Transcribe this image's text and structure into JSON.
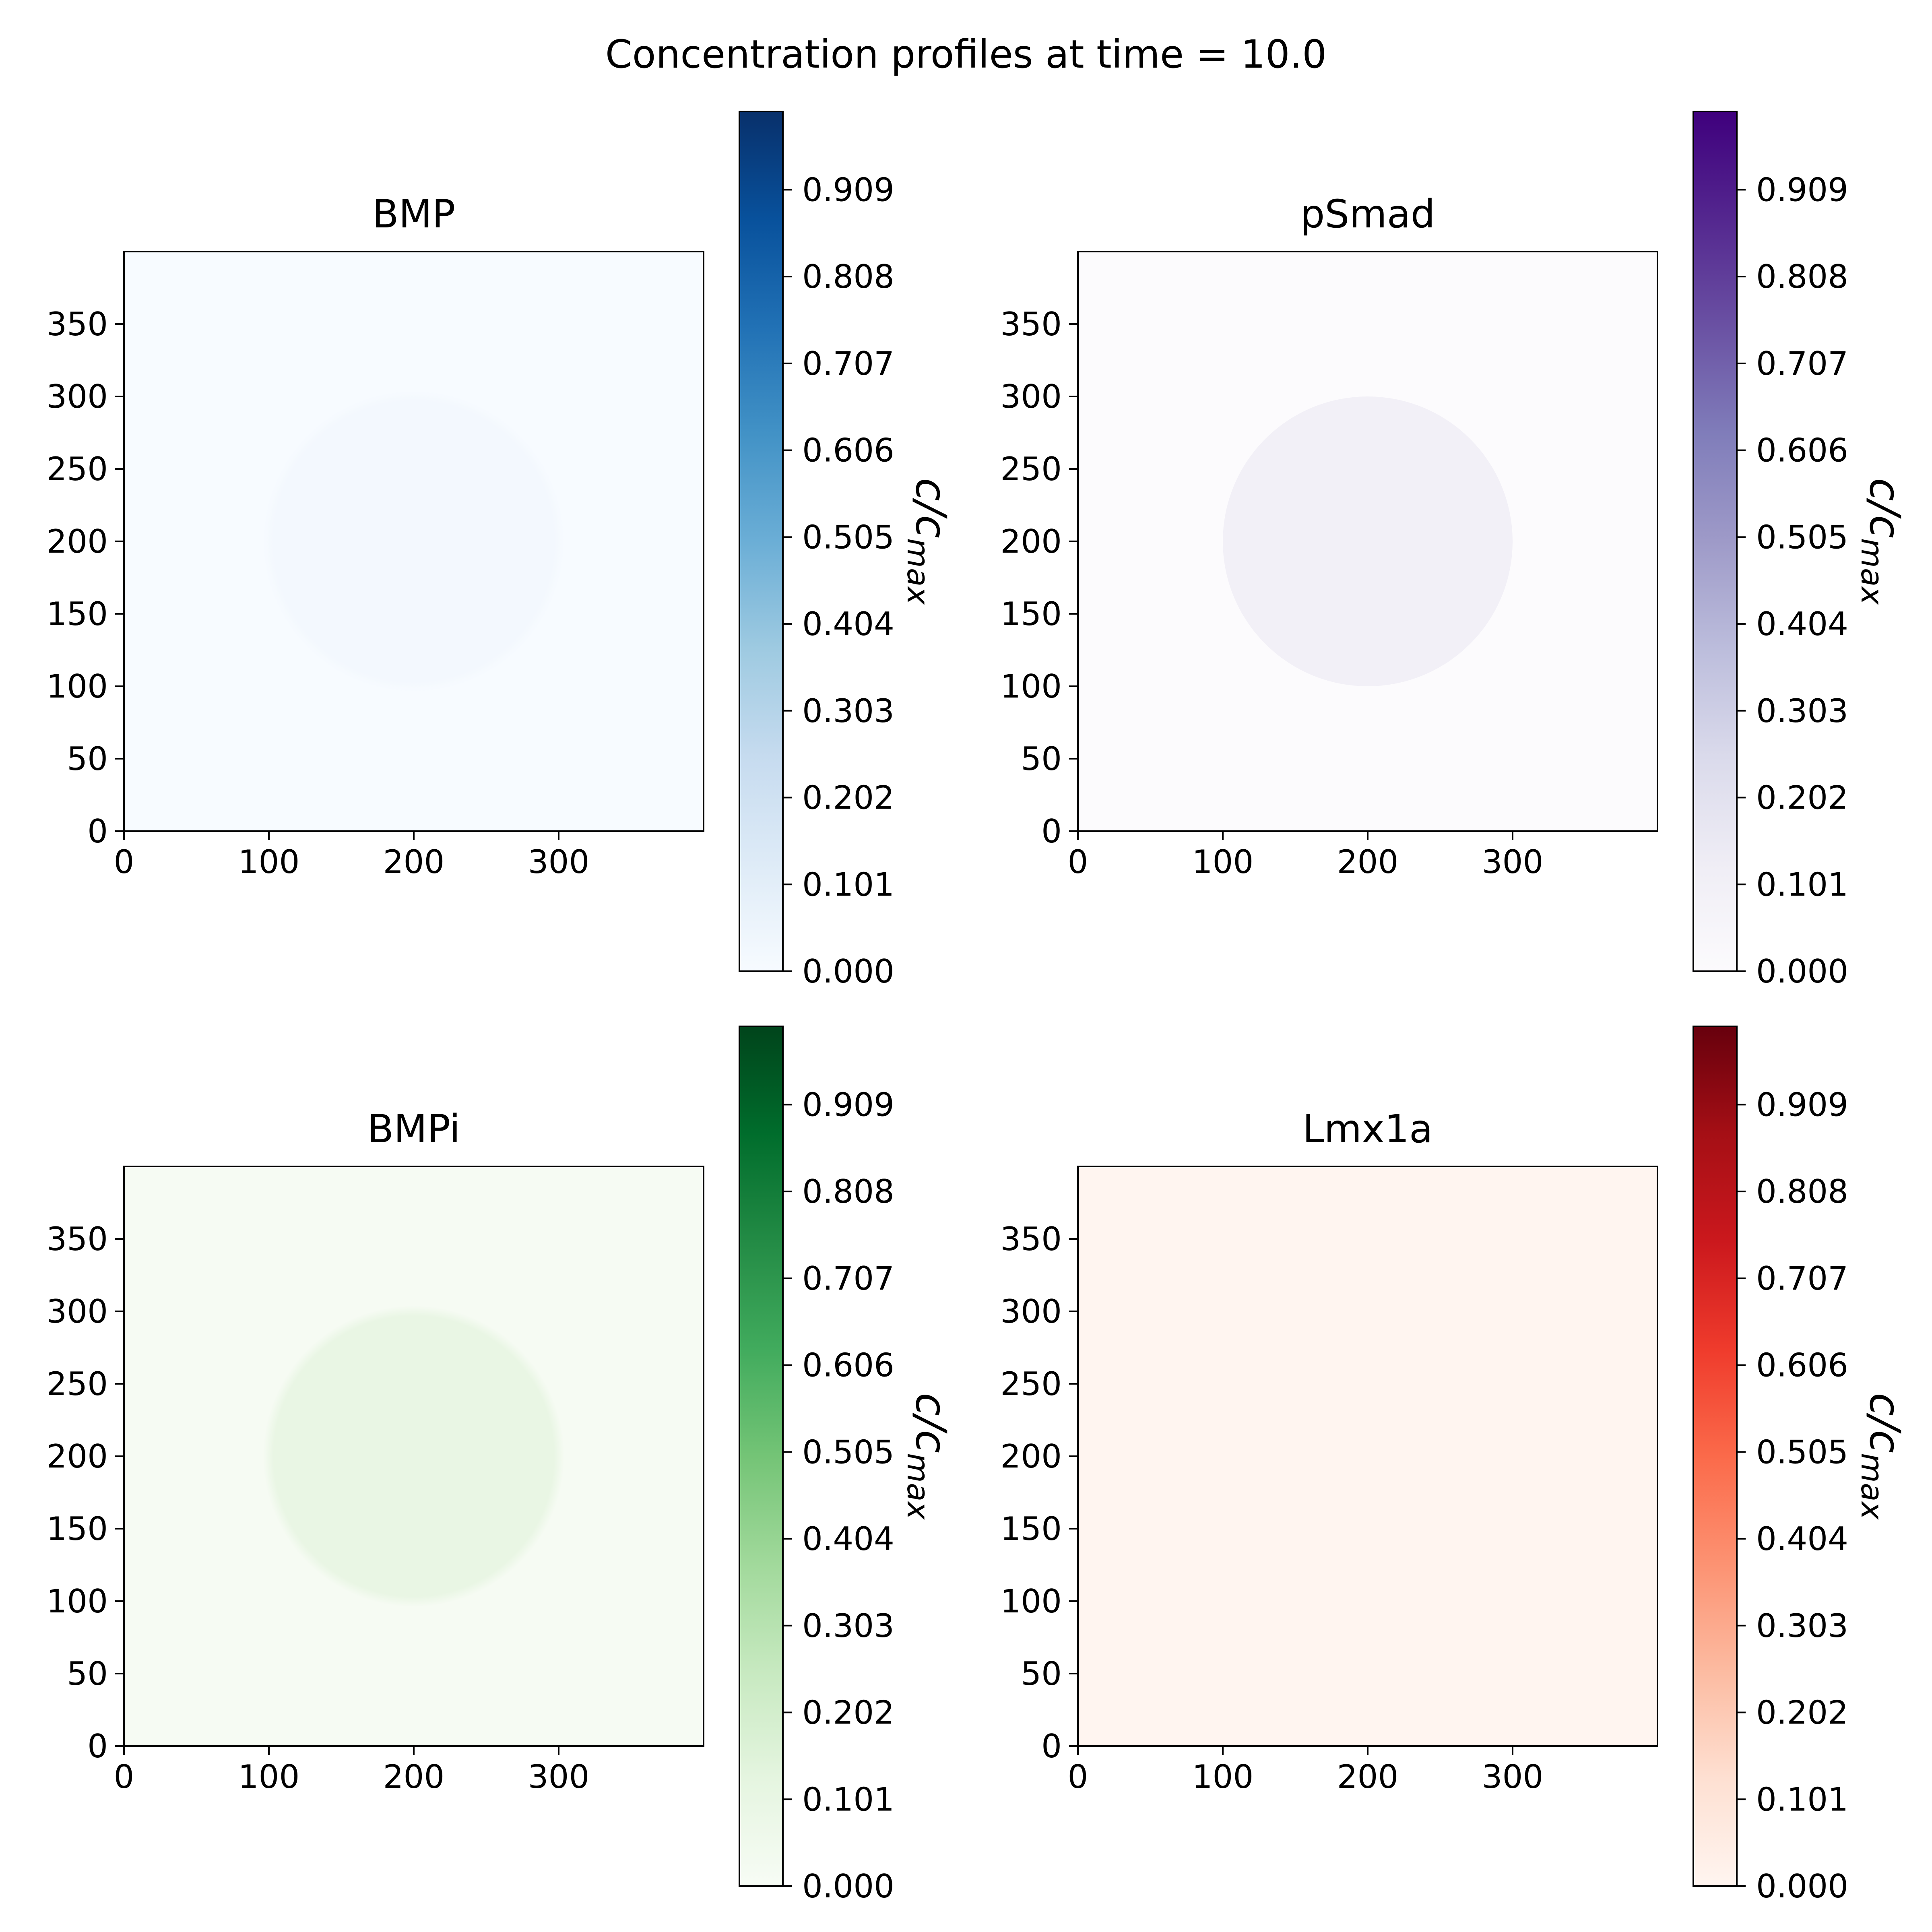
{
  "figure": {
    "suptitle": "Concentration profiles at time = 10.0"
  },
  "chart_data": [
    {
      "type": "heatmap",
      "title": "BMP",
      "colormap": "Blues",
      "colormap_stops": [
        "#f7fbff",
        "#deebf7",
        "#c6dbef",
        "#9ecae1",
        "#6baed6",
        "#4292c6",
        "#2171b5",
        "#08519c",
        "#08306b"
      ],
      "xlim": [
        0,
        400
      ],
      "ylim": [
        0,
        400
      ],
      "xticks": [
        "0",
        "100",
        "200",
        "300"
      ],
      "yticks": [
        "0",
        "50",
        "100",
        "150",
        "200",
        "250",
        "300",
        "350"
      ],
      "colorbar": {
        "label": "c/c_max",
        "range": [
          0,
          1
        ],
        "ticks": [
          "0.000",
          "0.101",
          "0.202",
          "0.303",
          "0.404",
          "0.505",
          "0.606",
          "0.707",
          "0.808",
          "0.909"
        ]
      },
      "field": {
        "background": 0.0,
        "disk": {
          "center": [
            200,
            200
          ],
          "radius": 100,
          "value": 0.02,
          "soft_edge": true
        }
      }
    },
    {
      "type": "heatmap",
      "title": "pSmad",
      "colormap": "Purples",
      "colormap_stops": [
        "#fcfbfd",
        "#efedf5",
        "#dadaeb",
        "#bcbddc",
        "#9e9ac8",
        "#807dba",
        "#6a51a3",
        "#54278f",
        "#3f007d"
      ],
      "xlim": [
        0,
        400
      ],
      "ylim": [
        0,
        400
      ],
      "xticks": [
        "0",
        "100",
        "200",
        "300"
      ],
      "yticks": [
        "0",
        "50",
        "100",
        "150",
        "200",
        "250",
        "300",
        "350"
      ],
      "colorbar": {
        "label": "c/c_max",
        "range": [
          0,
          1
        ],
        "ticks": [
          "0.000",
          "0.101",
          "0.202",
          "0.303",
          "0.404",
          "0.505",
          "0.606",
          "0.707",
          "0.808",
          "0.909"
        ]
      },
      "field": {
        "background": 0.0,
        "disk": {
          "center": [
            200,
            200
          ],
          "radius": 100,
          "value": 0.1,
          "soft_edge": false
        }
      }
    },
    {
      "type": "heatmap",
      "title": "BMPi",
      "colormap": "Greens",
      "colormap_stops": [
        "#f7fcf5",
        "#e5f5e0",
        "#c7e9c0",
        "#a1d99b",
        "#74c476",
        "#41ab5d",
        "#238b45",
        "#006d2c",
        "#00441b"
      ],
      "xlim": [
        0,
        400
      ],
      "ylim": [
        0,
        400
      ],
      "xticks": [
        "0",
        "100",
        "200",
        "300"
      ],
      "yticks": [
        "0",
        "50",
        "100",
        "150",
        "200",
        "250",
        "300",
        "350"
      ],
      "colorbar": {
        "label": "c/c_max",
        "range": [
          0,
          1
        ],
        "ticks": [
          "0.000",
          "0.101",
          "0.202",
          "0.303",
          "0.404",
          "0.505",
          "0.606",
          "0.707",
          "0.808",
          "0.909"
        ]
      },
      "field": {
        "background": 0.01,
        "disk": {
          "center": [
            200,
            200
          ],
          "radius": 100,
          "value": 0.1,
          "soft_edge": true
        }
      }
    },
    {
      "type": "heatmap",
      "title": "Lmx1a",
      "colormap": "Reds",
      "colormap_stops": [
        "#fff5f0",
        "#fee0d2",
        "#fcbba1",
        "#fc9272",
        "#fb6a4a",
        "#ef3b2c",
        "#cb181d",
        "#a50f15",
        "#67000d"
      ],
      "xlim": [
        0,
        400
      ],
      "ylim": [
        0,
        400
      ],
      "xticks": [
        "0",
        "100",
        "200",
        "300"
      ],
      "yticks": [
        "0",
        "50",
        "100",
        "150",
        "200",
        "250",
        "300",
        "350"
      ],
      "colorbar": {
        "label": "c/c_max",
        "range": [
          0,
          1
        ],
        "ticks": [
          "0.000",
          "0.101",
          "0.202",
          "0.303",
          "0.404",
          "0.505",
          "0.606",
          "0.707",
          "0.808",
          "0.909"
        ]
      },
      "field": {
        "background": 0.0,
        "disk": null
      }
    }
  ]
}
